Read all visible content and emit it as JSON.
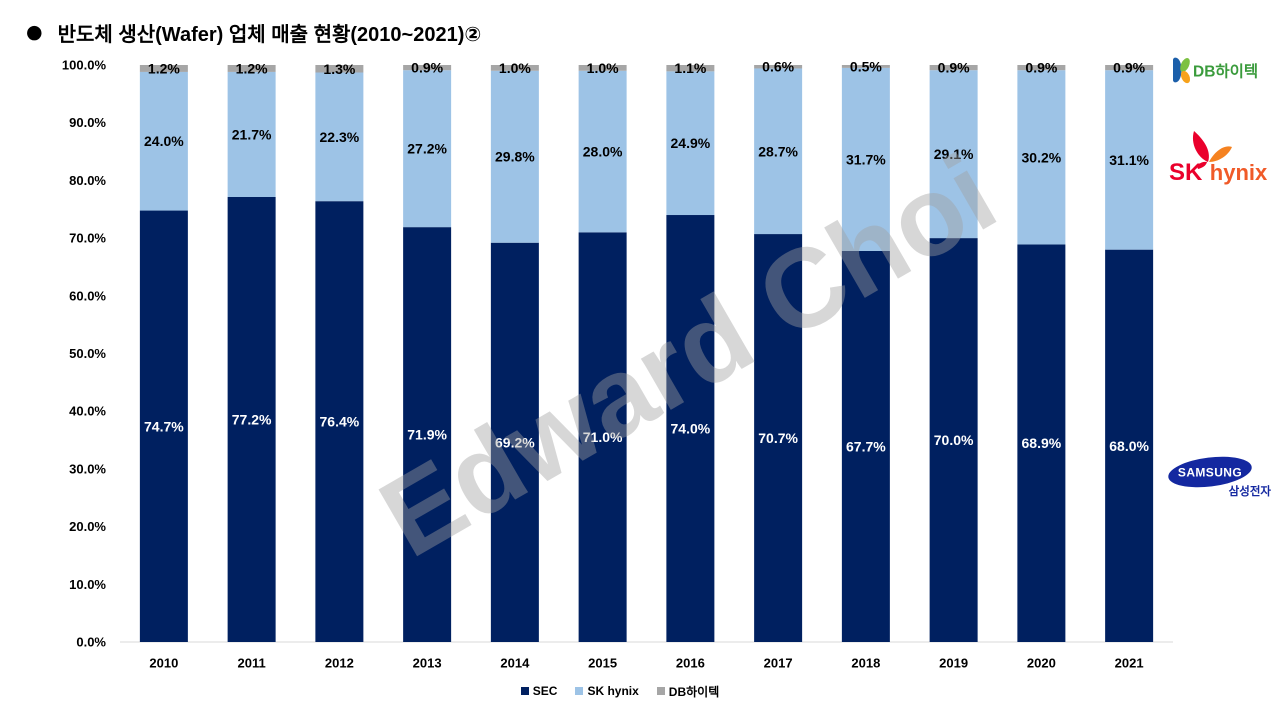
{
  "title": {
    "bullet": "●",
    "text": "반도체 생산(Wafer) 업체 매출 현황(2010~2021)②"
  },
  "chart_data": {
    "type": "bar",
    "stacked": true,
    "percent_stacked": true,
    "categories": [
      "2010",
      "2011",
      "2012",
      "2013",
      "2014",
      "2015",
      "2016",
      "2017",
      "2018",
      "2019",
      "2020",
      "2021"
    ],
    "series": [
      {
        "name": "SEC",
        "color": "#002060",
        "label_color": "#ffffff",
        "values": [
          74.7,
          77.2,
          76.4,
          71.9,
          69.2,
          71.0,
          74.0,
          70.7,
          67.7,
          70.0,
          68.9,
          68.0
        ]
      },
      {
        "name": "SK hynix",
        "color": "#9dc3e6",
        "label_color": "#000000",
        "values": [
          24.0,
          21.7,
          22.3,
          27.2,
          29.8,
          28.0,
          24.9,
          28.7,
          31.7,
          29.1,
          30.2,
          31.1
        ]
      },
      {
        "name": "DB하이텍",
        "color": "#a6a6a6",
        "label_color": "#000000",
        "values": [
          1.2,
          1.2,
          1.3,
          0.9,
          1.0,
          1.0,
          1.1,
          0.6,
          0.5,
          0.9,
          0.9,
          0.9
        ]
      }
    ],
    "ylim": [
      0,
      100
    ],
    "y_ticks": [
      0,
      10,
      20,
      30,
      40,
      50,
      60,
      70,
      80,
      90,
      100
    ],
    "grid": false,
    "legend_position": "bottom"
  },
  "logos": {
    "db_hitek": {
      "text": "DB하이텍",
      "text_color": "#3a9b3c",
      "mark_colors": [
        "#1b5faa",
        "#7cc142",
        "#f7a21b"
      ]
    },
    "sk_hynix": {
      "prefix": "SK",
      "name": "hynix",
      "prefix_color": "#ea002c",
      "name_color": "#f05a28",
      "wing_colors": [
        "#ea002c",
        "#f58220"
      ]
    },
    "samsung": {
      "wordmark": "SAMSUNG",
      "korean_name": "삼성전자",
      "color": "#1428a0"
    }
  },
  "watermark": "Edward Choi"
}
